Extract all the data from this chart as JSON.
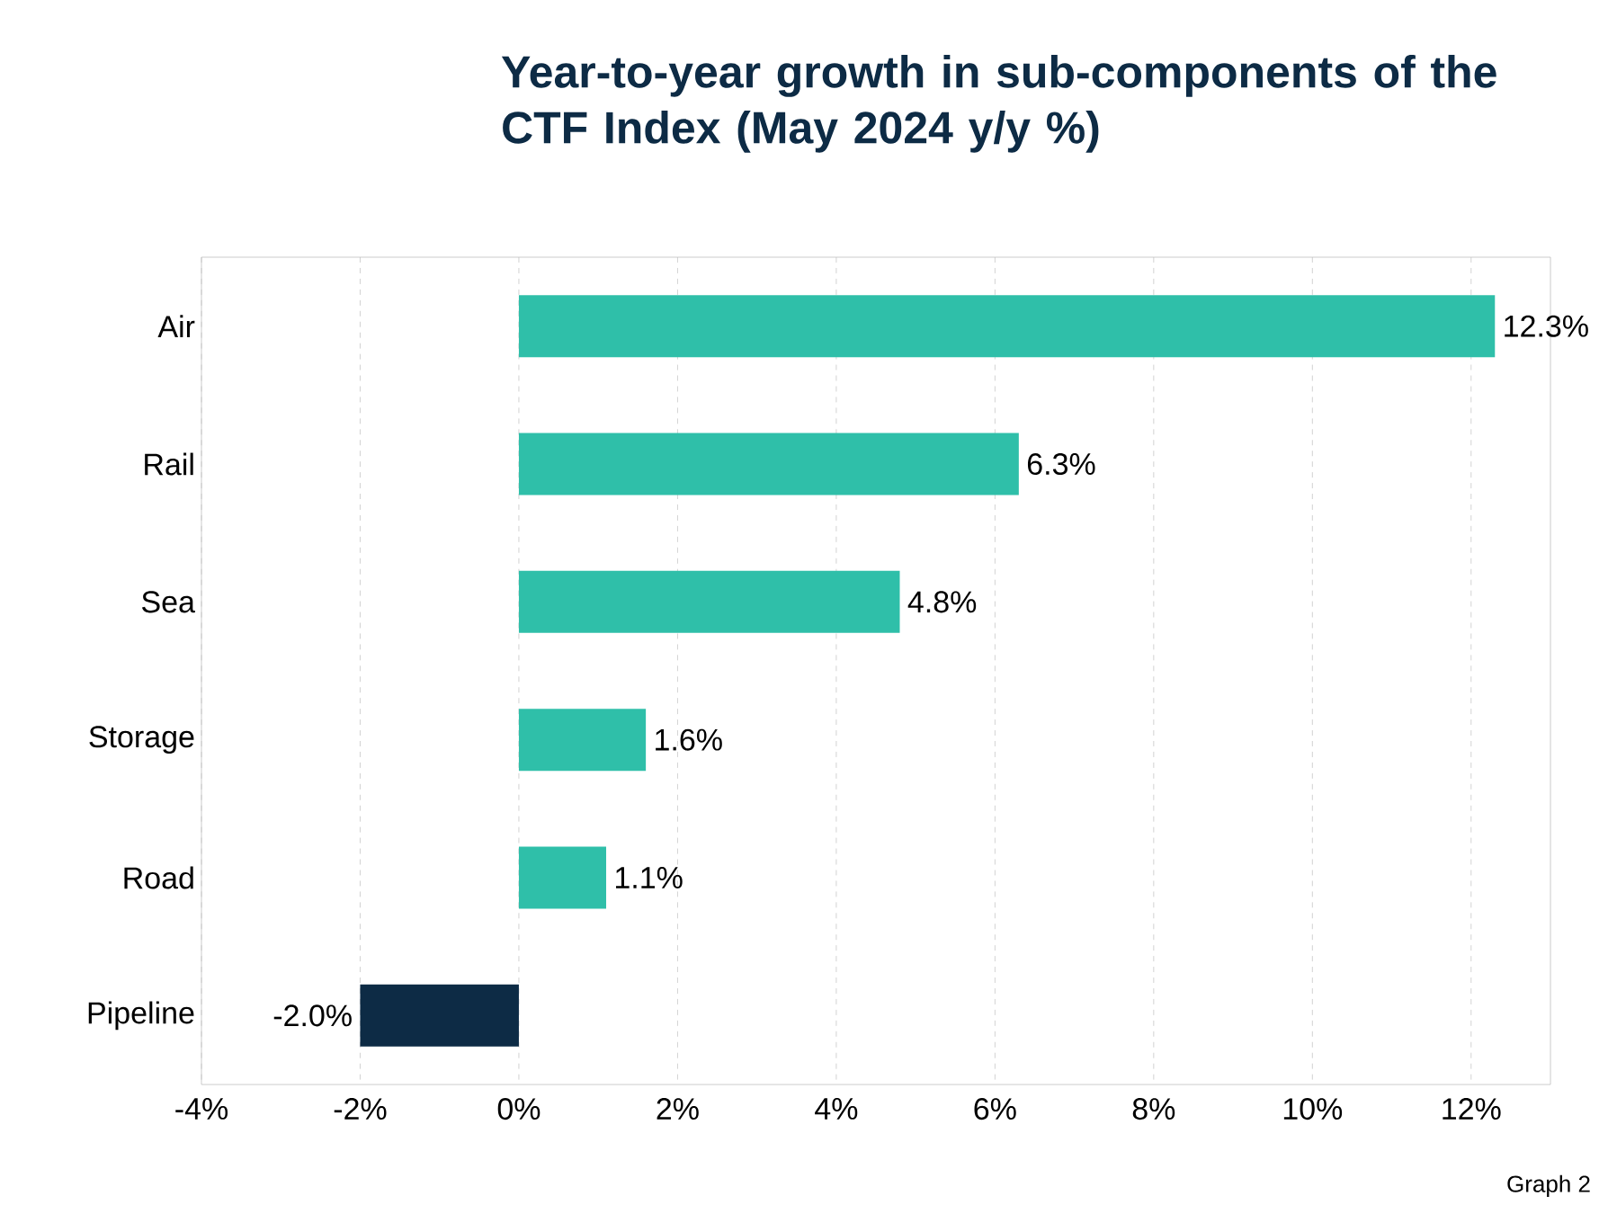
{
  "chart_data": {
    "type": "bar",
    "orientation": "horizontal",
    "title": "Year-to-year growth in sub-components of the CTF Index (May 2024 y/y %)",
    "categories": [
      "Air",
      "Rail",
      "Sea",
      "Storage",
      "Road",
      "Pipeline"
    ],
    "values": [
      12.3,
      6.3,
      4.8,
      1.6,
      1.1,
      -2.0
    ],
    "value_labels": [
      "12.3%",
      "6.3%",
      "4.8%",
      "1.6%",
      "1.1%",
      "-2.0%"
    ],
    "colors": [
      "#2fbfa9",
      "#2fbfa9",
      "#2fbfa9",
      "#2fbfa9",
      "#2fbfa9",
      "#0d2b45"
    ],
    "xlim": [
      -4,
      13
    ],
    "xticks": [
      {
        "value": -4,
        "label": "-4%"
      },
      {
        "value": -2,
        "label": "-2%"
      },
      {
        "value": 0,
        "label": "0%"
      },
      {
        "value": 2,
        "label": "2%"
      },
      {
        "value": 4,
        "label": "4%"
      },
      {
        "value": 6,
        "label": "6%"
      },
      {
        "value": 8,
        "label": "8%"
      },
      {
        "value": 10,
        "label": "10%"
      },
      {
        "value": 12,
        "label": "12%"
      }
    ],
    "grid": "x",
    "annotations": [
      "Graph 2"
    ]
  }
}
